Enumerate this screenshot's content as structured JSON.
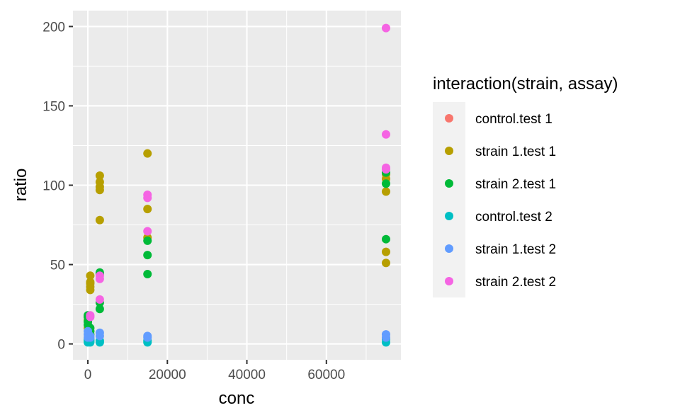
{
  "chart_data": {
    "type": "scatter",
    "xlabel": "conc",
    "ylabel": "ratio",
    "xlim": [
      -3750,
      78750
    ],
    "ylim": [
      -10,
      210
    ],
    "x_ticks": [
      0,
      20000,
      40000,
      60000
    ],
    "x_tick_labels": [
      "0",
      "20000",
      "40000",
      "60000"
    ],
    "y_ticks": [
      0,
      50,
      100,
      150,
      200
    ],
    "y_tick_labels": [
      "0",
      "50",
      "100",
      "150",
      "200"
    ],
    "grid": true,
    "legend": {
      "title": "interaction(strain, assay)",
      "position": "right"
    },
    "series": [
      {
        "name": "control.test 1",
        "color": "#F8766D",
        "points": []
      },
      {
        "name": "strain 1.test 1",
        "color": "#B79F00",
        "points": [
          [
            0,
            10
          ],
          [
            0,
            15
          ],
          [
            0,
            17
          ],
          [
            600,
            34
          ],
          [
            600,
            36
          ],
          [
            600,
            38
          ],
          [
            600,
            39
          ],
          [
            600,
            43
          ],
          [
            3000,
            78
          ],
          [
            3000,
            97
          ],
          [
            3000,
            99
          ],
          [
            3000,
            102
          ],
          [
            3000,
            106
          ],
          [
            15000,
            67
          ],
          [
            15000,
            85
          ],
          [
            15000,
            120
          ],
          [
            75000,
            51
          ],
          [
            75000,
            58
          ],
          [
            75000,
            96
          ],
          [
            75000,
            104
          ],
          [
            75000,
            107
          ]
        ]
      },
      {
        "name": "strain 2.test 1",
        "color": "#00BA38",
        "points": [
          [
            0,
            12
          ],
          [
            0,
            14
          ],
          [
            0,
            17
          ],
          [
            0,
            18
          ],
          [
            600,
            6
          ],
          [
            600,
            8
          ],
          [
            600,
            10
          ],
          [
            3000,
            22
          ],
          [
            3000,
            26
          ],
          [
            3000,
            44
          ],
          [
            3000,
            45
          ],
          [
            15000,
            44
          ],
          [
            15000,
            56
          ],
          [
            15000,
            65
          ],
          [
            75000,
            66
          ],
          [
            75000,
            101
          ],
          [
            75000,
            108
          ]
        ]
      },
      {
        "name": "control.test 2",
        "color": "#00BFC4",
        "points": [
          [
            0,
            1
          ],
          [
            0,
            2
          ],
          [
            0,
            3
          ],
          [
            600,
            1
          ],
          [
            600,
            2
          ],
          [
            600,
            3
          ],
          [
            3000,
            1
          ],
          [
            3000,
            2
          ],
          [
            15000,
            1
          ],
          [
            15000,
            2
          ],
          [
            75000,
            1
          ],
          [
            75000,
            3
          ]
        ]
      },
      {
        "name": "strain 1.test 2",
        "color": "#619CFF",
        "points": [
          [
            0,
            4
          ],
          [
            0,
            6
          ],
          [
            0,
            8
          ],
          [
            600,
            4
          ],
          [
            600,
            5
          ],
          [
            3000,
            5
          ],
          [
            3000,
            7
          ],
          [
            15000,
            4
          ],
          [
            15000,
            5
          ],
          [
            75000,
            4
          ],
          [
            75000,
            6
          ]
        ]
      },
      {
        "name": "strain 2.test 2",
        "color": "#F564E3",
        "points": [
          [
            600,
            17
          ],
          [
            600,
            18
          ],
          [
            3000,
            28
          ],
          [
            3000,
            41
          ],
          [
            3000,
            43
          ],
          [
            15000,
            71
          ],
          [
            15000,
            92
          ],
          [
            15000,
            94
          ],
          [
            75000,
            110
          ],
          [
            75000,
            111
          ],
          [
            75000,
            132
          ],
          [
            75000,
            199
          ]
        ]
      }
    ]
  }
}
